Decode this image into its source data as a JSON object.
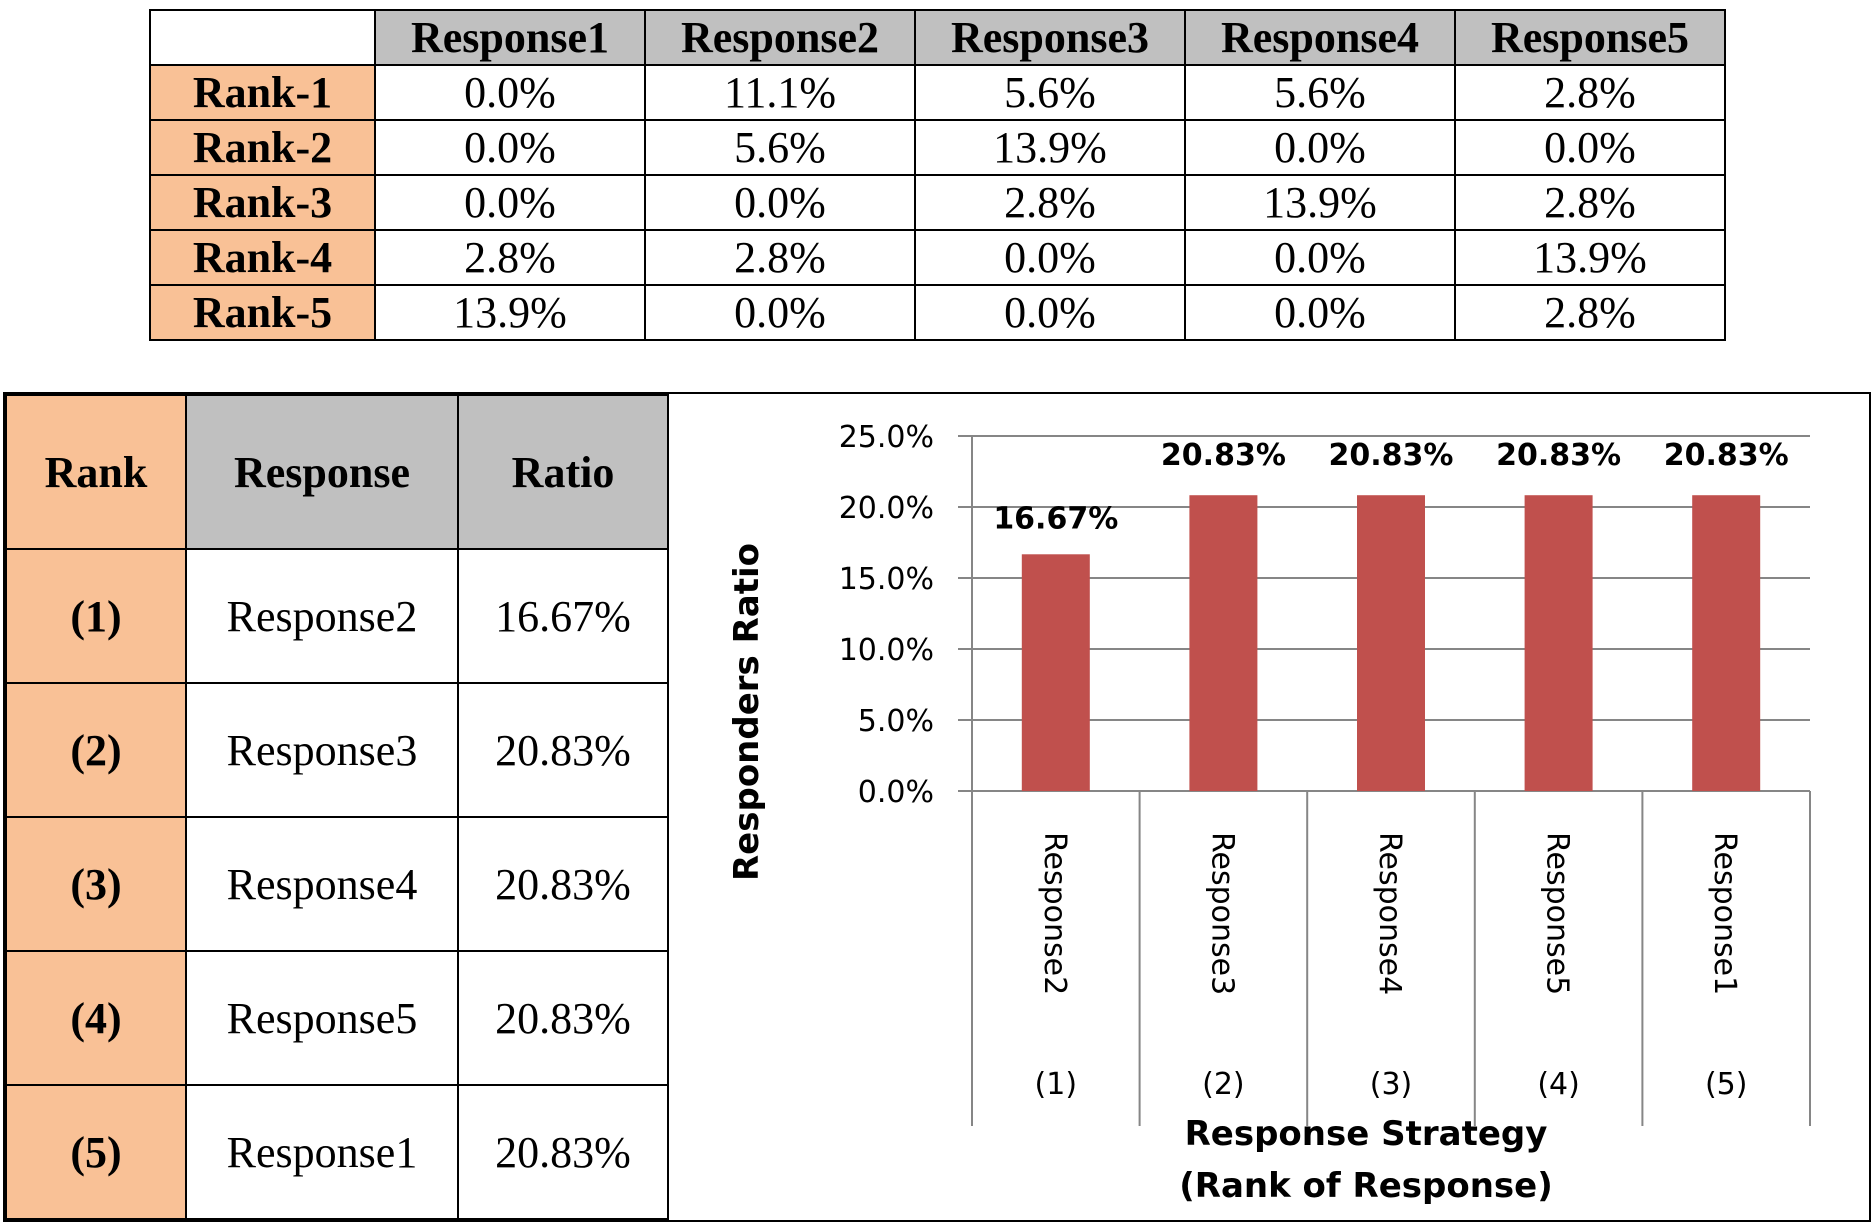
{
  "top_table": {
    "columns": [
      "Response1",
      "Response2",
      "Response3",
      "Response4",
      "Response5"
    ],
    "rows": [
      {
        "rank": "Rank-1",
        "values": [
          "0.0%",
          "11.1%",
          "5.6%",
          "5.6%",
          "2.8%"
        ]
      },
      {
        "rank": "Rank-2",
        "values": [
          "0.0%",
          "5.6%",
          "13.9%",
          "0.0%",
          "0.0%"
        ]
      },
      {
        "rank": "Rank-3",
        "values": [
          "0.0%",
          "0.0%",
          "2.8%",
          "13.9%",
          "2.8%"
        ]
      },
      {
        "rank": "Rank-4",
        "values": [
          "2.8%",
          "2.8%",
          "0.0%",
          "0.0%",
          "13.9%"
        ]
      },
      {
        "rank": "Rank-5",
        "values": [
          "13.9%",
          "0.0%",
          "0.0%",
          "0.0%",
          "2.8%"
        ]
      }
    ]
  },
  "rank_table": {
    "headers": {
      "rank": "Rank",
      "response": "Response",
      "ratio": "Ratio"
    },
    "rows": [
      {
        "rank": "(1)",
        "response": "Response2",
        "ratio": "16.67%"
      },
      {
        "rank": "(2)",
        "response": "Response3",
        "ratio": "20.83%"
      },
      {
        "rank": "(3)",
        "response": "Response4",
        "ratio": "20.83%"
      },
      {
        "rank": "(4)",
        "response": "Response5",
        "ratio": "20.83%"
      },
      {
        "rank": "(5)",
        "response": "Response1",
        "ratio": "20.83%"
      }
    ]
  },
  "chart_data": {
    "type": "bar",
    "categories": [
      "Response2",
      "Response3",
      "Response4",
      "Response5",
      "Response1"
    ],
    "rank_labels": [
      "(1)",
      "(2)",
      "(3)",
      "(4)",
      "(5)"
    ],
    "values": [
      16.67,
      20.83,
      20.83,
      20.83,
      20.83
    ],
    "data_labels": [
      "16.67%",
      "20.83%",
      "20.83%",
      "20.83%",
      "20.83%"
    ],
    "ylabel": "Responders Ratio",
    "xlabel": [
      "Response Strategy",
      "(Rank of Response)"
    ],
    "ylim": [
      0,
      25
    ],
    "yticks": [
      "0.0%",
      "5.0%",
      "10.0%",
      "15.0%",
      "20.0%",
      "25.0%"
    ],
    "grid": true,
    "bar_color": "#c0504d",
    "grid_color": "#868686"
  }
}
